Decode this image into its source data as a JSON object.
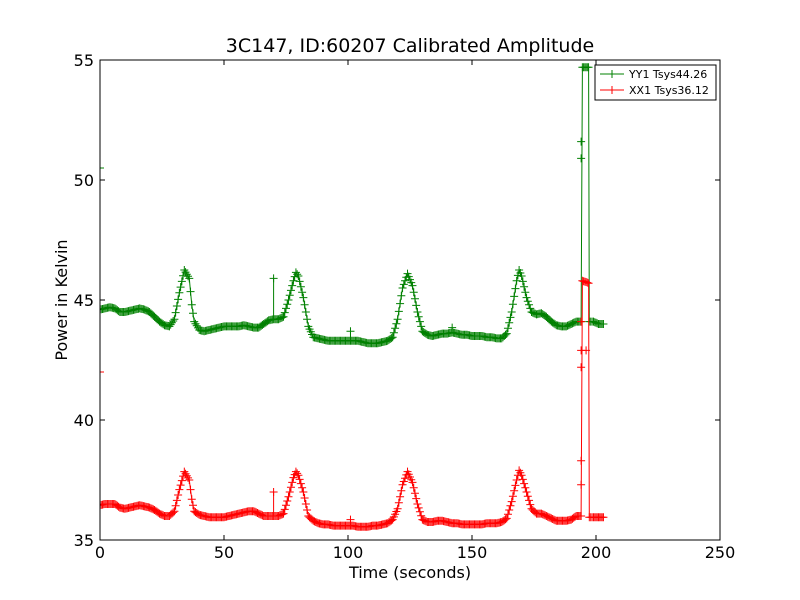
{
  "chart_data": {
    "type": "line",
    "title": "3C147, ID:60207 Calibrated Amplitude",
    "xlabel": "Time (seconds)",
    "ylabel": "Power in Kelvin",
    "xlim": [
      0,
      250
    ],
    "ylim": [
      35,
      55
    ],
    "xticks": [
      0,
      50,
      100,
      150,
      200,
      250
    ],
    "yticks": [
      35,
      40,
      45,
      50,
      55
    ],
    "grid": false,
    "legend_position": "top-right",
    "marker": "+",
    "series": [
      {
        "name": "YY1 Tsys44.26",
        "color": "#008000",
        "baseline": "yy_baseline",
        "pts": [
          [
            0,
            44.6
          ],
          [
            2,
            44.65
          ],
          [
            4,
            44.7
          ],
          [
            6,
            44.65
          ],
          [
            8,
            44.5
          ],
          [
            10,
            44.5
          ],
          [
            12,
            44.55
          ],
          [
            14,
            44.6
          ],
          [
            16,
            44.65
          ],
          [
            18,
            44.6
          ],
          [
            20,
            44.5
          ],
          [
            22,
            44.3
          ],
          [
            24,
            44.1
          ],
          [
            26,
            43.95
          ],
          [
            28,
            43.9
          ],
          [
            30,
            44.2
          ],
          [
            32,
            45.3
          ],
          [
            34,
            46.25
          ],
          [
            36,
            45.9
          ],
          [
            37,
            44.8
          ],
          [
            38,
            44.1
          ],
          [
            40,
            43.75
          ],
          [
            42,
            43.7
          ],
          [
            44,
            43.75
          ],
          [
            46,
            43.8
          ],
          [
            48,
            43.85
          ],
          [
            50,
            43.9
          ],
          [
            52,
            43.9
          ],
          [
            54,
            43.9
          ],
          [
            56,
            43.9
          ],
          [
            58,
            43.95
          ],
          [
            60,
            43.9
          ],
          [
            62,
            43.85
          ],
          [
            64,
            43.85
          ],
          [
            66,
            44.0
          ],
          [
            68,
            44.15
          ],
          [
            70,
            44.2
          ],
          [
            72,
            44.2
          ],
          [
            74,
            44.3
          ],
          [
            76,
            45.0
          ],
          [
            78,
            45.8
          ],
          [
            79,
            46.15
          ],
          [
            80,
            46.0
          ],
          [
            82,
            45.1
          ],
          [
            84,
            43.9
          ],
          [
            86,
            43.45
          ],
          [
            88,
            43.4
          ],
          [
            90,
            43.35
          ],
          [
            92,
            43.3
          ],
          [
            94,
            43.3
          ],
          [
            96,
            43.3
          ],
          [
            98,
            43.3
          ],
          [
            100,
            43.3
          ],
          [
            102,
            43.3
          ],
          [
            104,
            43.3
          ],
          [
            106,
            43.25
          ],
          [
            108,
            43.2
          ],
          [
            110,
            43.2
          ],
          [
            112,
            43.2
          ],
          [
            114,
            43.25
          ],
          [
            116,
            43.3
          ],
          [
            118,
            43.45
          ],
          [
            120,
            44.2
          ],
          [
            122,
            45.5
          ],
          [
            124,
            46.1
          ],
          [
            126,
            45.6
          ],
          [
            128,
            44.5
          ],
          [
            130,
            43.7
          ],
          [
            132,
            43.55
          ],
          [
            134,
            43.5
          ],
          [
            136,
            43.55
          ],
          [
            138,
            43.6
          ],
          [
            140,
            43.6
          ],
          [
            142,
            43.65
          ],
          [
            144,
            43.6
          ],
          [
            146,
            43.55
          ],
          [
            148,
            43.55
          ],
          [
            150,
            43.5
          ],
          [
            152,
            43.5
          ],
          [
            154,
            43.5
          ],
          [
            156,
            43.45
          ],
          [
            158,
            43.45
          ],
          [
            160,
            43.4
          ],
          [
            162,
            43.4
          ],
          [
            164,
            43.6
          ],
          [
            166,
            44.5
          ],
          [
            168,
            45.8
          ],
          [
            169,
            46.25
          ],
          [
            170,
            46.0
          ],
          [
            172,
            45.1
          ],
          [
            174,
            44.5
          ],
          [
            176,
            44.4
          ],
          [
            178,
            44.45
          ],
          [
            180,
            44.3
          ],
          [
            182,
            44.1
          ],
          [
            184,
            43.95
          ],
          [
            186,
            43.9
          ],
          [
            188,
            43.9
          ],
          [
            190,
            44.0
          ],
          [
            192,
            44.1
          ],
          [
            194,
            44.1
          ],
          [
            194.5,
            54.7
          ],
          [
            196,
            54.7
          ],
          [
            197,
            54.7
          ],
          [
            197.3,
            44.1
          ],
          [
            199,
            44.1
          ],
          [
            201,
            44.0
          ],
          [
            203,
            44.0
          ]
        ],
        "spikes": [
          [
            70,
            44.2,
            45.9
          ],
          [
            101,
            43.3,
            43.7
          ],
          [
            142,
            43.65,
            43.85
          ]
        ],
        "extra_marks": [
          [
            194,
            51.6
          ],
          [
            194,
            50.9
          ],
          [
            0,
            50.5
          ]
        ]
      },
      {
        "name": "XX1 Tsys36.12",
        "color": "#ff0000",
        "baseline": "xx_baseline",
        "pts": [
          [
            0,
            36.45
          ],
          [
            2,
            36.5
          ],
          [
            4,
            36.5
          ],
          [
            6,
            36.5
          ],
          [
            8,
            36.35
          ],
          [
            10,
            36.3
          ],
          [
            12,
            36.35
          ],
          [
            14,
            36.4
          ],
          [
            16,
            36.45
          ],
          [
            18,
            36.4
          ],
          [
            20,
            36.35
          ],
          [
            22,
            36.25
          ],
          [
            24,
            36.1
          ],
          [
            26,
            36.0
          ],
          [
            28,
            36.0
          ],
          [
            30,
            36.2
          ],
          [
            32,
            37.1
          ],
          [
            34,
            37.85
          ],
          [
            36,
            37.5
          ],
          [
            37,
            36.7
          ],
          [
            38,
            36.2
          ],
          [
            40,
            36.05
          ],
          [
            42,
            36.0
          ],
          [
            44,
            35.95
          ],
          [
            46,
            35.95
          ],
          [
            48,
            35.95
          ],
          [
            50,
            35.95
          ],
          [
            52,
            36.0
          ],
          [
            54,
            36.05
          ],
          [
            56,
            36.1
          ],
          [
            58,
            36.15
          ],
          [
            60,
            36.2
          ],
          [
            62,
            36.2
          ],
          [
            64,
            36.1
          ],
          [
            66,
            36.0
          ],
          [
            68,
            36.0
          ],
          [
            70,
            36.0
          ],
          [
            72,
            36.0
          ],
          [
            74,
            36.1
          ],
          [
            76,
            36.8
          ],
          [
            78,
            37.6
          ],
          [
            79,
            37.85
          ],
          [
            80,
            37.7
          ],
          [
            82,
            37.0
          ],
          [
            84,
            36.0
          ],
          [
            86,
            35.8
          ],
          [
            88,
            35.7
          ],
          [
            90,
            35.65
          ],
          [
            92,
            35.65
          ],
          [
            94,
            35.6
          ],
          [
            96,
            35.6
          ],
          [
            98,
            35.6
          ],
          [
            100,
            35.6
          ],
          [
            102,
            35.6
          ],
          [
            104,
            35.55
          ],
          [
            106,
            35.55
          ],
          [
            108,
            35.55
          ],
          [
            110,
            35.6
          ],
          [
            112,
            35.6
          ],
          [
            114,
            35.65
          ],
          [
            116,
            35.7
          ],
          [
            118,
            35.85
          ],
          [
            120,
            36.3
          ],
          [
            122,
            37.3
          ],
          [
            124,
            37.85
          ],
          [
            126,
            37.4
          ],
          [
            128,
            36.5
          ],
          [
            130,
            35.85
          ],
          [
            132,
            35.75
          ],
          [
            134,
            35.75
          ],
          [
            136,
            35.8
          ],
          [
            138,
            35.8
          ],
          [
            140,
            35.75
          ],
          [
            142,
            35.7
          ],
          [
            144,
            35.7
          ],
          [
            146,
            35.65
          ],
          [
            148,
            35.65
          ],
          [
            150,
            35.65
          ],
          [
            152,
            35.65
          ],
          [
            154,
            35.65
          ],
          [
            156,
            35.7
          ],
          [
            158,
            35.7
          ],
          [
            160,
            35.7
          ],
          [
            162,
            35.75
          ],
          [
            164,
            35.9
          ],
          [
            166,
            36.6
          ],
          [
            168,
            37.5
          ],
          [
            169,
            37.9
          ],
          [
            170,
            37.7
          ],
          [
            172,
            37.0
          ],
          [
            174,
            36.3
          ],
          [
            176,
            36.1
          ],
          [
            178,
            36.1
          ],
          [
            180,
            36.0
          ],
          [
            182,
            35.9
          ],
          [
            184,
            35.8
          ],
          [
            186,
            35.8
          ],
          [
            188,
            35.8
          ],
          [
            190,
            35.85
          ],
          [
            192,
            36.0
          ],
          [
            194,
            36.0
          ],
          [
            194.5,
            45.8
          ],
          [
            196,
            45.75
          ],
          [
            197,
            45.7
          ],
          [
            197.3,
            35.95
          ],
          [
            199,
            35.95
          ],
          [
            201,
            35.95
          ],
          [
            203,
            35.95
          ]
        ],
        "spikes": [
          [
            70,
            36.0,
            37.0
          ],
          [
            101,
            35.6,
            35.85
          ]
        ],
        "extra_marks": [
          [
            194,
            44.1
          ],
          [
            194,
            42.9
          ],
          [
            194,
            42.2
          ],
          [
            196,
            42.9
          ],
          [
            194,
            38.3
          ],
          [
            194,
            37.3
          ],
          [
            0,
            42.0
          ]
        ]
      }
    ]
  },
  "yy_baseline": 44.26,
  "xx_baseline": 36.12
}
